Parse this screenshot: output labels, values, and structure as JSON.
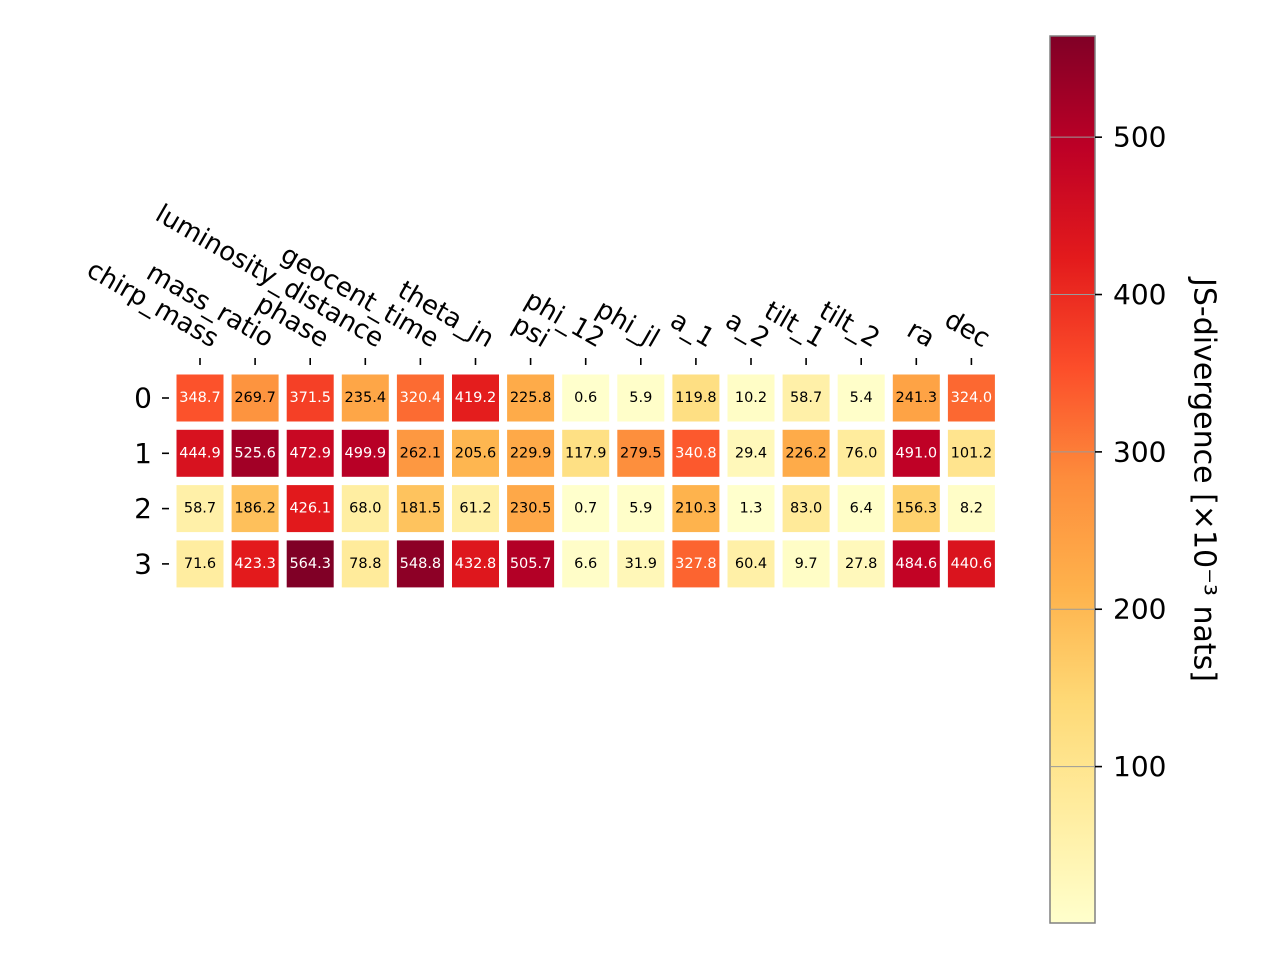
{
  "chart_data": {
    "type": "heatmap",
    "title": "",
    "xlabel": "",
    "ylabel": "",
    "columns": [
      "chirp_mass",
      "mass_ratio",
      "phase",
      "luminosity_distance",
      "geocent_time",
      "theta_jn",
      "psi",
      "phi_12",
      "phi_jl",
      "a_1",
      "a_2",
      "tilt_1",
      "tilt_2",
      "ra",
      "dec"
    ],
    "rows": [
      "0",
      "1",
      "2",
      "3"
    ],
    "values": [
      [
        348.7,
        269.7,
        371.5,
        235.4,
        320.4,
        419.2,
        225.8,
        0.6,
        5.9,
        119.8,
        10.2,
        58.7,
        5.4,
        241.3,
        324.0
      ],
      [
        444.9,
        525.6,
        472.9,
        499.9,
        262.1,
        205.6,
        229.9,
        117.9,
        279.5,
        340.8,
        29.4,
        226.2,
        76.0,
        491.0,
        101.2
      ],
      [
        58.7,
        186.2,
        426.1,
        68.0,
        181.5,
        61.2,
        230.5,
        0.7,
        5.9,
        210.3,
        1.3,
        83.0,
        6.4,
        156.3,
        8.2
      ],
      [
        71.6,
        423.3,
        564.3,
        78.8,
        548.8,
        432.8,
        505.7,
        6.6,
        31.9,
        327.8,
        60.4,
        9.7,
        27.8,
        484.6,
        440.6
      ]
    ],
    "colorbar": {
      "label": "JS-divergence [×10⁻³ nats]",
      "range": [
        0.6,
        564.3
      ],
      "ticks": [
        100,
        200,
        300,
        400,
        500
      ],
      "tick_labels": [
        "100",
        "200",
        "300",
        "400",
        "500"
      ],
      "colormap": "YlOrRd"
    },
    "grid": false,
    "legend": "none"
  }
}
